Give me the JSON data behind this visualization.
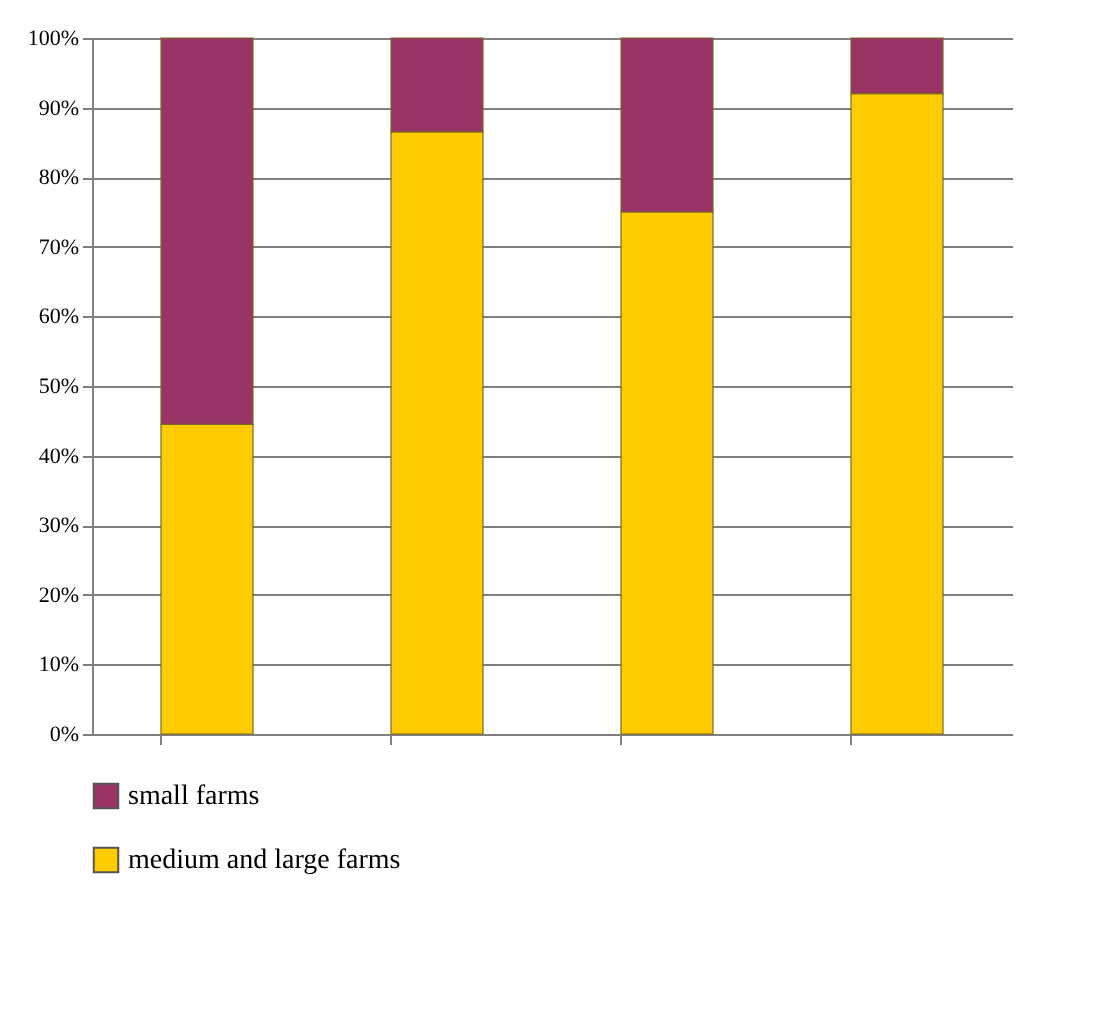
{
  "chart_data": {
    "type": "bar",
    "stacked": true,
    "categories": [
      null,
      null,
      null,
      null
    ],
    "series": [
      {
        "name": "medium and large farms",
        "color": "#ffcc00",
        "values": [
          44.5,
          86.5,
          75,
          92
        ]
      },
      {
        "name": "small farms",
        "color": "#993366",
        "values": [
          55.5,
          13.5,
          25,
          8
        ]
      }
    ],
    "ylim": [
      0,
      100
    ],
    "yticks": [
      {
        "value": 0,
        "label": "0%"
      },
      {
        "value": 10,
        "label": "10%"
      },
      {
        "value": 20,
        "label": "20%"
      },
      {
        "value": 30,
        "label": "30%"
      },
      {
        "value": 40,
        "label": "40%"
      },
      {
        "value": 50,
        "label": "50%"
      },
      {
        "value": 60,
        "label": "60%"
      },
      {
        "value": 70,
        "label": "70%"
      },
      {
        "value": 80,
        "label": "80%"
      },
      {
        "value": 90,
        "label": "90%"
      },
      {
        "value": 100,
        "label": "100%"
      }
    ],
    "grid": "y",
    "legend": "bottom left",
    "tick_labels": "y"
  }
}
